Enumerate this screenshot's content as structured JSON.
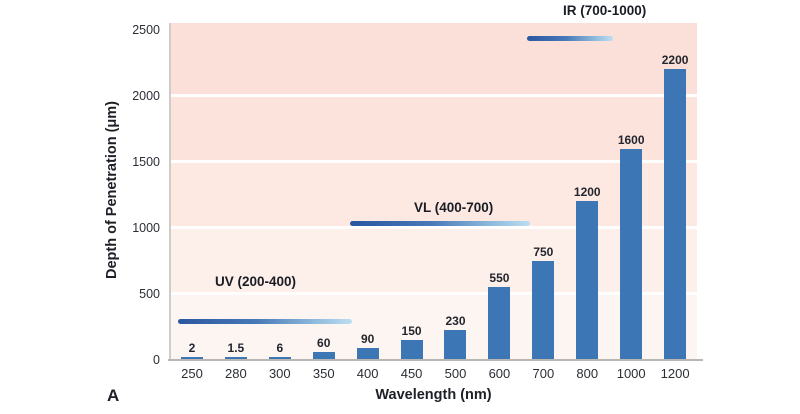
{
  "panel_label": "A",
  "colors": {
    "bar": "#3d76b5",
    "band_colors_bottom_up": [
      "#fdf5f2",
      "#fdefe9",
      "#fde9e2",
      "#fce4dd",
      "#fbdfd9"
    ],
    "gridline": "#ffffff",
    "annotation_line_gradient": [
      "#2b57a0",
      "#4779b8",
      "#8db9dd",
      "#bcdef0"
    ],
    "text": "#1d2026"
  },
  "chart_data": {
    "type": "bar",
    "title": "",
    "xlabel": "Wavelength (nm)",
    "ylabel": "Depth of Penetration (μm)",
    "categories": [
      "250",
      "280",
      "300",
      "350",
      "400",
      "450",
      "500",
      "600",
      "700",
      "800",
      "1000",
      "1200"
    ],
    "values": [
      2,
      1.5,
      6,
      60,
      90,
      150,
      230,
      550,
      750,
      1200,
      1600,
      2200
    ],
    "ylim": [
      0,
      2500
    ],
    "yticks": [
      0,
      500,
      1000,
      1500,
      2000,
      2500
    ],
    "grid": "horizontal white gridlines between shaded pink bands",
    "legend_position": "none",
    "annotations": [
      {
        "id": "uv",
        "label": "UV (200-400)",
        "range_nm": [
          200,
          400
        ]
      },
      {
        "id": "vl",
        "label": "VL (400-700)",
        "range_nm": [
          400,
          700
        ]
      },
      {
        "id": "ir",
        "label": "IR (700-1000)",
        "range_nm": [
          700,
          1000
        ]
      }
    ]
  }
}
